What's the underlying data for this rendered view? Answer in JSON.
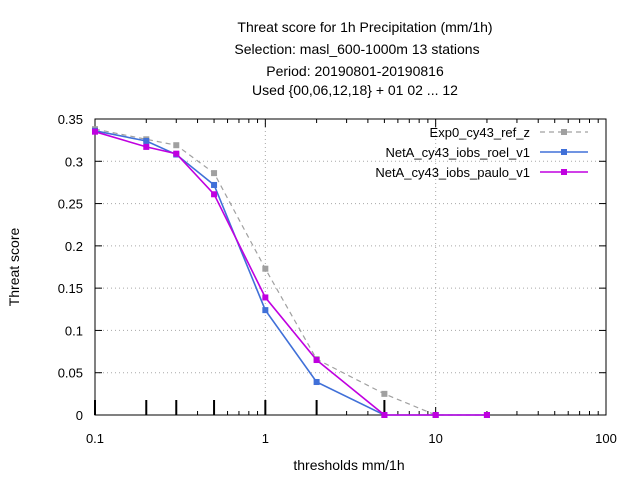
{
  "chart_data": {
    "type": "line",
    "title_lines": [
      "Threat score  for 1h Precipitation (mm/1h)",
      "Selection: masl_600-1000m     13 stations",
      "Period: 20190801-20190816",
      "Used {00,06,12,18} + 01 02 ... 12"
    ],
    "xlabel": "thresholds mm/1h",
    "ylabel": "Threat score",
    "xscale": "log",
    "xlim": [
      0.1,
      100
    ],
    "ylim": [
      0,
      0.35
    ],
    "x_tick_labels": [
      "0.1",
      "1",
      "10",
      "100"
    ],
    "y_tick_labels": [
      "0",
      "0.05",
      "0.1",
      "0.15",
      "0.2",
      "0.25",
      "0.3",
      "0.35"
    ],
    "grid": true,
    "legend_position": "top-right",
    "threshold_markers": [
      0.1,
      0.2,
      0.3,
      0.5,
      1,
      2,
      5
    ],
    "series": [
      {
        "name": "Exp0_cy43_ref_z",
        "color": "#a0a0a0",
        "dashed": true,
        "x": [
          0.1,
          0.2,
          0.3,
          0.5,
          1,
          2,
          5,
          10,
          20
        ],
        "y": [
          0.338,
          0.326,
          0.319,
          0.286,
          0.173,
          0.066,
          0.025,
          0,
          0
        ]
      },
      {
        "name": "NetA_cy43_iobs_roel_v1",
        "color": "#4070d8",
        "dashed": false,
        "x": [
          0.1,
          0.2,
          0.3,
          0.5,
          1,
          2,
          5,
          10,
          20
        ],
        "y": [
          0.336,
          0.324,
          0.308,
          0.272,
          0.124,
          0.039,
          0,
          0,
          0
        ]
      },
      {
        "name": "NetA_cy43_iobs_paulo_v1",
        "color": "#c000e0",
        "dashed": false,
        "x": [
          0.1,
          0.2,
          0.3,
          0.5,
          1,
          2,
          5,
          10,
          20
        ],
        "y": [
          0.335,
          0.317,
          0.309,
          0.261,
          0.139,
          0.065,
          0,
          0,
          0
        ]
      }
    ]
  }
}
